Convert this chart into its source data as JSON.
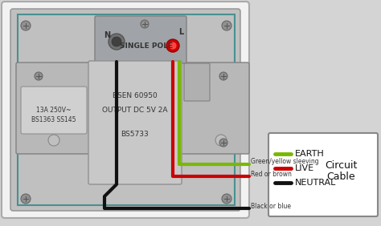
{
  "bg_color": "#d4d4d4",
  "plate_color": "#c0c0c0",
  "plate_inner_color": "#b8b8b8",
  "center_box_color": "#c8c8c8",
  "white_plate": "#f0f0f0",
  "socket_label": "SINGLE POLE",
  "socket_specs_line1": "BSEN 60950",
  "socket_specs_line2": "OUTPUT DC 5V 2A",
  "socket_specs_line3": "BS5733",
  "socket_rating_line1": "13A 250V~",
  "socket_rating_line2": "BS1363 SS145",
  "wire_green_label": "Green/yellow sleeving",
  "wire_red_label": "Red or brown",
  "wire_black_label": "Black or blue",
  "legend_labels": [
    "EARTH",
    "LIVE",
    "NEUTRAL"
  ],
  "legend_title_line1": "Circuit",
  "legend_title_line2": "Cable",
  "wire_green_color": "#7ab800",
  "wire_red_color": "#cc0000",
  "wire_black_color": "#111111",
  "n_label": "N",
  "l_label": "L",
  "teal_color": "#4a9090",
  "screw_color": "#909090",
  "connector_color": "#a0a4a8"
}
